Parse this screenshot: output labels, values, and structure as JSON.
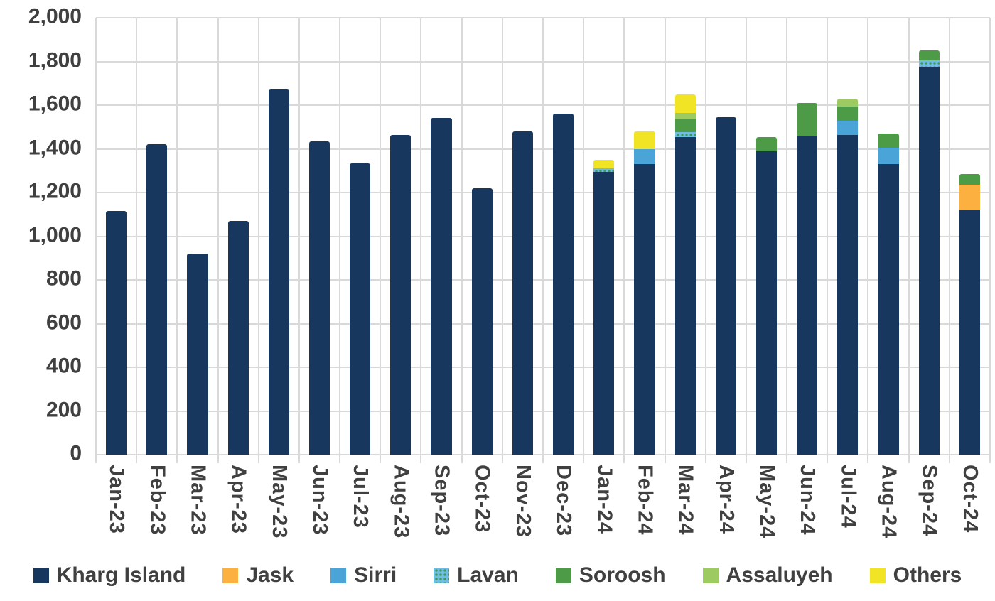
{
  "chart_data": {
    "type": "bar",
    "stacked": true,
    "title": "",
    "xlabel": "",
    "ylabel": "",
    "categories": [
      "Jan-23",
      "Feb-23",
      "Mar-23",
      "Apr-23",
      "May-23",
      "Jun-23",
      "Jul-23",
      "Aug-23",
      "Sep-23",
      "Oct-23",
      "Nov-23",
      "Dec-23",
      "Jan-24",
      "Feb-24",
      "Mar-24",
      "Apr-24",
      "May-24",
      "Jun-24",
      "Jul-24",
      "Aug-24",
      "Sep-24",
      "Oct-24"
    ],
    "series": [
      {
        "name": "Kharg Island",
        "color": "#17375e",
        "pattern": "solid",
        "values": [
          1115,
          1420,
          920,
          1070,
          1675,
          1435,
          1335,
          1465,
          1540,
          1220,
          1480,
          1560,
          1295,
          1330,
          1455,
          1545,
          1390,
          1460,
          1465,
          1330,
          1775,
          1120
        ]
      },
      {
        "name": "Jask",
        "color": "#fbb03f",
        "pattern": "solid",
        "values": [
          0,
          0,
          0,
          0,
          0,
          0,
          0,
          0,
          0,
          0,
          0,
          0,
          0,
          0,
          0,
          0,
          0,
          0,
          0,
          0,
          0,
          115
        ]
      },
      {
        "name": "Sirri",
        "color": "#4ba4d8",
        "pattern": "solid",
        "values": [
          0,
          0,
          0,
          0,
          0,
          0,
          0,
          0,
          0,
          0,
          0,
          0,
          0,
          70,
          0,
          0,
          0,
          0,
          65,
          75,
          0,
          0
        ]
      },
      {
        "name": "Lavan",
        "color": "#6fbde4",
        "pattern": "dots",
        "values": [
          0,
          0,
          0,
          0,
          0,
          0,
          0,
          0,
          0,
          0,
          0,
          0,
          15,
          0,
          20,
          0,
          0,
          0,
          0,
          0,
          30,
          0
        ]
      },
      {
        "name": "Soroosh",
        "color": "#4d9a47",
        "pattern": "solid",
        "values": [
          0,
          0,
          0,
          0,
          0,
          0,
          0,
          0,
          0,
          0,
          0,
          0,
          0,
          0,
          60,
          0,
          65,
          150,
          65,
          65,
          45,
          50
        ]
      },
      {
        "name": "Assaluyeh",
        "color": "#9ecb61",
        "pattern": "solid",
        "values": [
          0,
          0,
          0,
          0,
          0,
          0,
          0,
          0,
          0,
          0,
          0,
          0,
          0,
          0,
          30,
          0,
          0,
          0,
          35,
          0,
          0,
          0
        ]
      },
      {
        "name": "Others",
        "color": "#f1e425",
        "pattern": "solid",
        "values": [
          0,
          0,
          0,
          0,
          0,
          0,
          0,
          0,
          0,
          0,
          0,
          0,
          40,
          80,
          85,
          0,
          0,
          0,
          0,
          0,
          0,
          0
        ]
      }
    ],
    "ylim": [
      0,
      2000
    ],
    "ytick_step": 200,
    "ytick_labels": [
      "0",
      "200",
      "400",
      "600",
      "800",
      "1,000",
      "1,200",
      "1,400",
      "1,600",
      "1,800",
      "2,000"
    ],
    "grid": "horizontal-and-vertical",
    "legend_position": "bottom",
    "grid_color": "#d9d9d9",
    "label_color": "#404040"
  }
}
